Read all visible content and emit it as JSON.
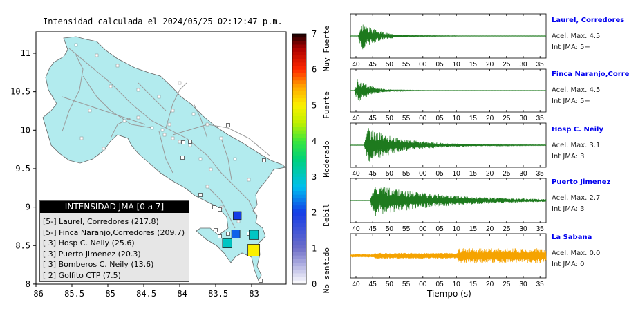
{
  "header": {
    "title": "Intensidad calculada el 2024/05/25_02:12:47_p.m."
  },
  "map": {
    "x_ticks": [
      "-86",
      "-85.5",
      "-85",
      "-84.5",
      "-84",
      "-83.5",
      "-83"
    ],
    "y_ticks": [
      "11",
      "10.5",
      "10",
      "9.5",
      "9",
      "8.5",
      "8"
    ],
    "land_color": "#b2ebee",
    "stations": [
      {
        "lon": -83.2,
        "lat": 8.89,
        "intensity": 2.0
      },
      {
        "lon": -83.22,
        "lat": 8.65,
        "intensity": 2.2
      },
      {
        "lon": -83.34,
        "lat": 8.53,
        "intensity": 3.0
      },
      {
        "lon": -82.97,
        "lat": 8.64,
        "intensity": 3.0
      },
      {
        "lon": -82.97,
        "lat": 8.44,
        "intensity": 5.0
      }
    ]
  },
  "colorbar": {
    "ticks": [
      "0",
      "1",
      "2",
      "3",
      "4",
      "5",
      "6",
      "7"
    ],
    "labels": [
      "No sentido",
      "Debil",
      "Moderado",
      "Fuerte",
      "Muy Fuerte"
    ]
  },
  "legend": {
    "title": "INTENSIDAD JMA [0 a 7]",
    "items": [
      "[5-]  Laurel, Corredores (217.8)",
      "[5-]  Finca Naranjo,Corredores (209.7)",
      "[ 3]  Hosp C. Neily (25.6)",
      "[ 3]  Puerto Jimenez (20.3)",
      "[ 3]  Bomberos C. Neily (13.6)",
      "[ 2]  Golfito CTP (7.5)"
    ]
  },
  "chart_data": {
    "type": "line",
    "xlabel": "Tiempo (s)",
    "x_ticks": [
      "40",
      "45",
      "50",
      "55",
      "00",
      "05",
      "10",
      "15",
      "20",
      "25",
      "30",
      "35"
    ],
    "traces": [
      {
        "name": "Laurel, Corredores",
        "acel": "Acel. Max. 4.5",
        "int": "Int JMA: 5−",
        "color": "#1e7a1e",
        "onset": 0.04,
        "amp": 0.9,
        "decay": 0.08
      },
      {
        "name": "Finca Naranjo,Corredores",
        "acel": "Acel. Max. 4.5",
        "int": "Int JMA: 5−",
        "color": "#1e7a1e",
        "onset": 0.02,
        "amp": 0.9,
        "decay": 0.06
      },
      {
        "name": "Hosp C. Neily",
        "acel": "Acel. Max. 3.1",
        "int": "Int JMA: 3",
        "color": "#1e7a1e",
        "onset": 0.07,
        "amp": 0.95,
        "decay": 0.18
      },
      {
        "name": "Puerto Jimenez",
        "acel": "Acel. Max. 2.7",
        "int": "Int JMA: 3",
        "color": "#1e7a1e",
        "onset": 0.1,
        "amp": 0.8,
        "decay": 0.35
      },
      {
        "name": "La Sabana",
        "acel": "Acel. Max. 0.0",
        "int": "Int JMA: 0",
        "color": "#f5a300",
        "onset": 0.0,
        "amp": 0.25,
        "decay": 10
      }
    ]
  }
}
